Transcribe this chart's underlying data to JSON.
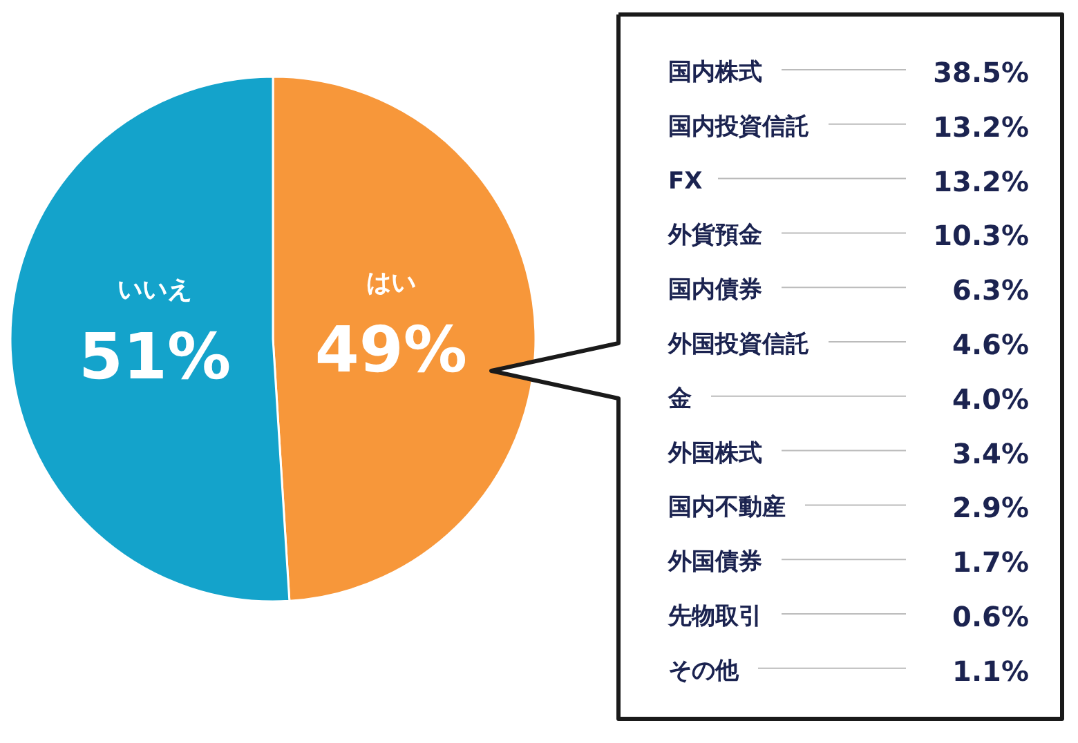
{
  "chart_data": [
    {
      "type": "pie",
      "categories": [
        "はい",
        "いいえ"
      ],
      "values": [
        49,
        51
      ],
      "colors": [
        "#f7973a",
        "#14a3cb"
      ],
      "value_labels": [
        "49%",
        "51%"
      ]
    },
    {
      "type": "other",
      "categories": [
        "国内株式",
        "国内投資信託",
        "FX",
        "外貨預金",
        "国内債券",
        "外国投資信託",
        "金",
        "外国株式",
        "国内不動産",
        "外国債券",
        "先物取引",
        "その他"
      ],
      "values": [
        38.5,
        13.2,
        13.2,
        10.3,
        6.3,
        4.6,
        4.0,
        3.4,
        2.9,
        1.7,
        0.6,
        1.1
      ],
      "value_labels": [
        "38.5%",
        "13.2%",
        "13.2%",
        "10.3%",
        "6.3%",
        "4.6%",
        "4.0%",
        "3.4%",
        "2.9%",
        "1.7%",
        "0.6%",
        "1.1%"
      ],
      "color": "#1b2350"
    }
  ]
}
